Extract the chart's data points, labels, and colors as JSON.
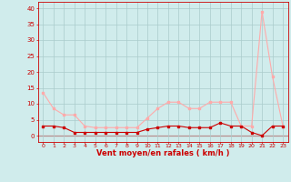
{
  "hours": [
    0,
    1,
    2,
    3,
    4,
    5,
    6,
    7,
    8,
    9,
    10,
    11,
    12,
    13,
    14,
    15,
    16,
    17,
    18,
    19,
    20,
    21,
    22,
    23
  ],
  "wind_avg": [
    3,
    3,
    2.5,
    1,
    1,
    1,
    1,
    1,
    1,
    1,
    2,
    2.5,
    3,
    3,
    2.5,
    2.5,
    2.5,
    4,
    3,
    3,
    1,
    0,
    3,
    3
  ],
  "wind_gust": [
    13.5,
    8.5,
    6.5,
    6.5,
    3,
    2.5,
    2.5,
    2.5,
    2.5,
    2.5,
    5.5,
    8.5,
    10.5,
    10.5,
    8.5,
    8.5,
    10.5,
    10.5,
    10.5,
    3,
    3,
    39,
    18.5,
    3
  ],
  "line_avg_color": "#cc0000",
  "line_gust_color": "#ffaaaa",
  "bg_color": "#d0ecec",
  "grid_color": "#aacccc",
  "axis_label_color": "#cc0000",
  "tick_color": "#cc0000",
  "xlabel": "Vent moyen/en rafales ( km/h )",
  "yticks": [
    0,
    5,
    10,
    15,
    20,
    25,
    30,
    35,
    40
  ],
  "ylim": [
    -2,
    42
  ],
  "xlim": [
    -0.5,
    23.5
  ]
}
